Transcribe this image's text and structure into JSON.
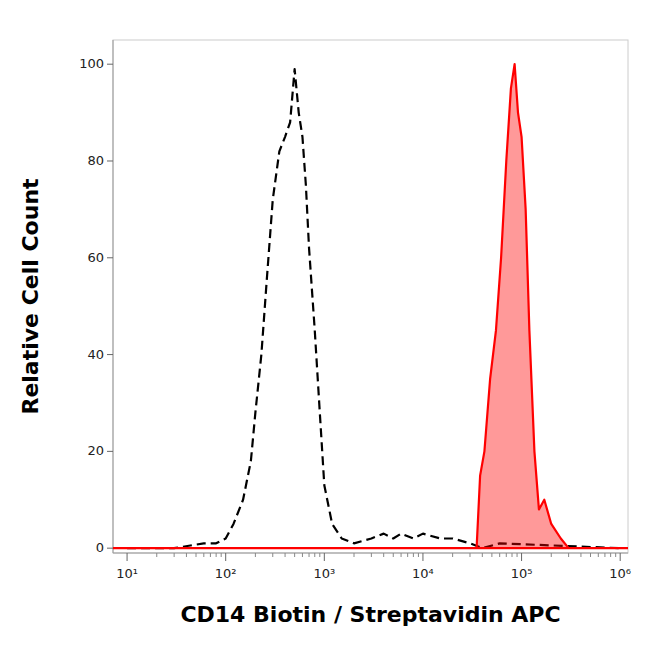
{
  "chart_data": {
    "type": "line",
    "x_label": "CD14 Biotin / Streptavidin APC",
    "y_label": "Relative Cell Count",
    "log": "x",
    "xlim": [
      7.2,
      1200000
    ],
    "xticks": [
      {
        "value": 10,
        "label": "10¹"
      },
      {
        "value": 100,
        "label": "10²"
      },
      {
        "value": 1000,
        "label": "10³"
      },
      {
        "value": 10000,
        "label": "10⁴"
      },
      {
        "value": 100000,
        "label": "10⁵"
      },
      {
        "value": 1000000,
        "label": "10⁶"
      }
    ],
    "ylim": [
      -1,
      105
    ],
    "yticks": [
      0,
      20,
      40,
      60,
      80,
      100
    ],
    "series": [
      {
        "type": "line",
        "color": "#000000",
        "line_style": "dashed",
        "x": [
          10,
          30,
          60,
          80,
          100,
          120,
          150,
          180,
          200,
          230,
          260,
          300,
          350,
          400,
          450,
          500,
          550,
          600,
          650,
          700,
          800,
          900,
          1000,
          1200,
          1500,
          2000,
          3000,
          4000,
          5000,
          6000,
          8000,
          10000,
          15000,
          20000,
          30000,
          40000,
          60000,
          1000000
        ],
        "values": [
          0,
          0,
          1,
          1,
          2,
          5,
          10,
          18,
          28,
          40,
          55,
          72,
          82,
          85,
          88,
          99,
          90,
          85,
          75,
          62,
          45,
          28,
          13,
          5,
          2,
          1,
          2,
          3,
          2,
          3,
          2,
          3,
          2,
          2,
          1,
          0,
          1,
          0
        ]
      },
      {
        "type": "area",
        "color": "#ff0000",
        "line_style": "solid",
        "x": [
          7.2,
          35000,
          38000,
          42000,
          48000,
          55000,
          62000,
          70000,
          78000,
          85000,
          92000,
          100000,
          110000,
          120000,
          135000,
          150000,
          170000,
          200000,
          250000,
          300000,
          1200000
        ],
        "values": [
          0,
          0,
          15,
          20,
          35,
          45,
          60,
          80,
          95,
          100,
          90,
          85,
          70,
          45,
          20,
          8,
          10,
          5,
          2,
          0,
          0
        ]
      }
    ]
  }
}
